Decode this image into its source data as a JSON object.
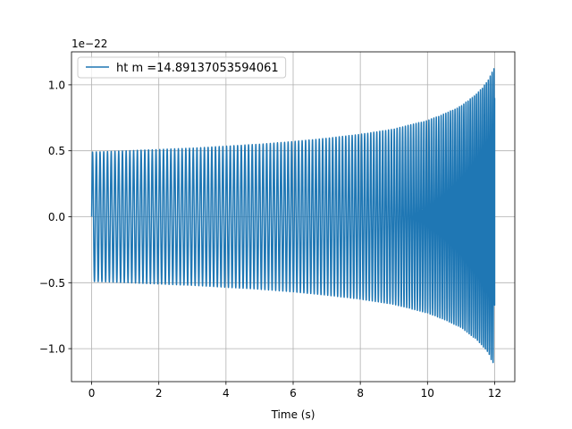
{
  "chart_data": {
    "type": "line",
    "title": "",
    "xlabel": "Time (s)",
    "ylabel": "",
    "y_scale_label": "1e−22",
    "xlim": [
      -0.6,
      12.6
    ],
    "ylim": [
      -1.25,
      1.25
    ],
    "xticks": [
      0,
      2,
      4,
      6,
      8,
      10,
      12
    ],
    "xtick_labels": [
      "0",
      "2",
      "4",
      "6",
      "8",
      "10",
      "12"
    ],
    "yticks": [
      -1.0,
      -0.5,
      0.0,
      0.5,
      1.0
    ],
    "ytick_labels": [
      "−1.0",
      "−0.5",
      "0.0",
      "0.5",
      "1.0"
    ],
    "grid": true,
    "legend_position": "upper-left",
    "series": [
      {
        "name": "ht m =14.89137053594061",
        "color": "#1f77b4",
        "style": "dense-oscillation",
        "x": [
          0,
          1,
          2,
          3,
          4,
          5,
          6,
          7,
          8,
          9,
          10,
          10.5,
          11,
          11.5,
          11.8,
          12.0
        ],
        "envelope": [
          0.49,
          0.5,
          0.51,
          0.52,
          0.535,
          0.55,
          0.57,
          0.595,
          0.625,
          0.665,
          0.73,
          0.78,
          0.84,
          0.94,
          1.03,
          1.14
        ]
      }
    ]
  }
}
